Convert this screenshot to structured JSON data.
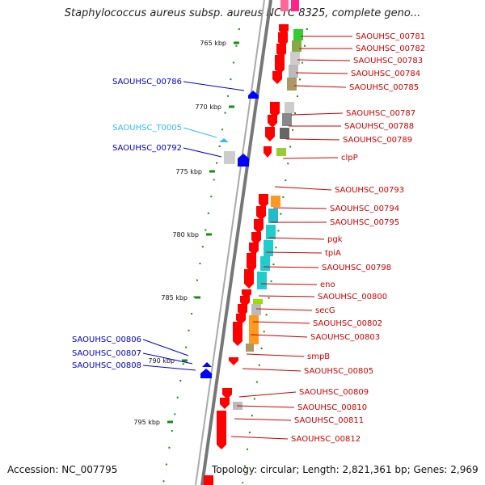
{
  "title": "Staphylococcus aureus subsp. aureus NCTC 8325, complete geno...",
  "footer": {
    "accession": "Accession: NC_007795",
    "topology": "Topology: circular; Length: 2,821,361 bp; Genes: 2,969"
  },
  "ruler": [
    "765 kbp",
    "770 kbp",
    "775 kbp",
    "780 kbp",
    "785 kbp",
    "790 kbp",
    "795 kbp"
  ],
  "labels_right": [
    "SAOUHSC_00781",
    "SAOUHSC_00782",
    "SAOUHSC_00783",
    "SAOUHSC_00784",
    "SAOUHSC_00785",
    "SAOUHSC_00787",
    "SAOUHSC_00788",
    "SAOUHSC_00789",
    "clpP",
    "SAOUHSC_00793",
    "SAOUHSC_00794",
    "SAOUHSC_00795",
    "pgk",
    "tpiA",
    "SAOUHSC_00798",
    "eno",
    "SAOUHSC_00800",
    "secG",
    "SAOUHSC_00802",
    "SAOUHSC_00803",
    "smpB",
    "SAOUHSC_00805",
    "SAOUHSC_00809",
    "SAOUHSC_00810",
    "SAOUHSC_00811",
    "SAOUHSC_00812"
  ],
  "labels_left": [
    "SAOUHSC_00786",
    "SAOUHSC_T0005",
    "SAOUHSC_00792",
    "SAOUHSC_00806",
    "SAOUHSC_00807",
    "SAOUHSC_00808"
  ],
  "colors": {
    "forward_gene": "#ff0000",
    "reverse_gene": "#0000ff",
    "trna": "#33bbee",
    "right_label": "#cc0000",
    "left_label": "#0000cc",
    "trna_label": "#33bbee",
    "tick": "#1a8a1a",
    "backbone": "#888888"
  }
}
